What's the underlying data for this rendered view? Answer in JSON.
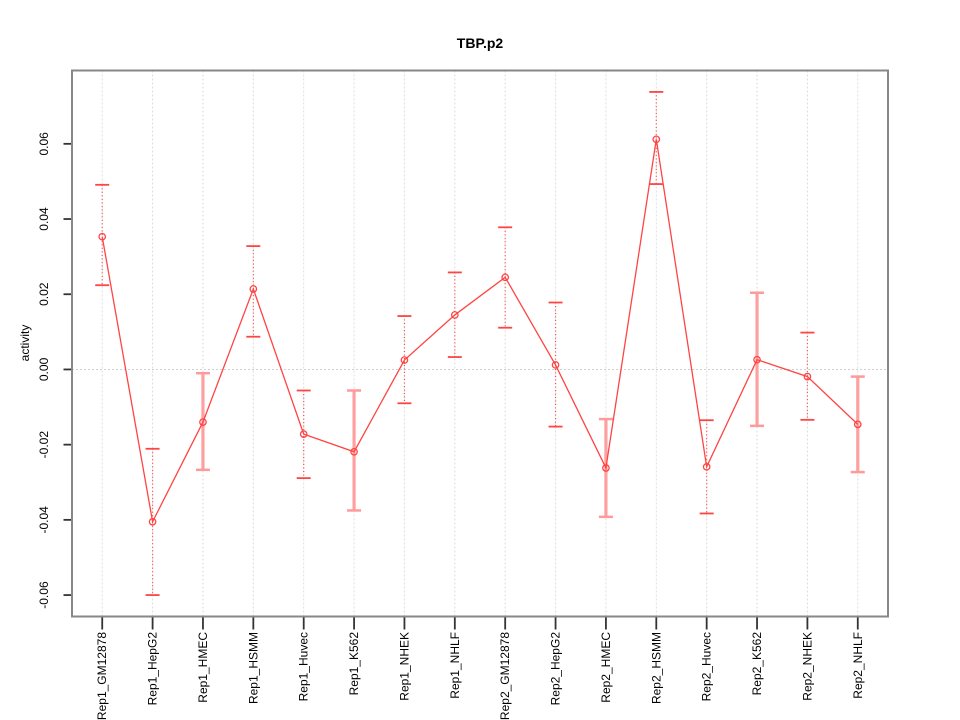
{
  "title": "TBP.p2",
  "chart_data": {
    "type": "line",
    "title": "TBP.p2",
    "xlabel": "",
    "ylabel": "activity",
    "legend": "none",
    "grid": "dotted vertical gridline per category; dotted horizontal line at y=0",
    "marker": "open-circle",
    "categories": [
      "Rep1_GM12878",
      "Rep1_HepG2",
      "Rep1_HMEC",
      "Rep1_HSMM",
      "Rep1_Huvec",
      "Rep1_K562",
      "Rep1_NHEK",
      "Rep1_NHLF",
      "Rep2_GM12878",
      "Rep2_HepG2",
      "Rep2_HMEC",
      "Rep2_HSMM",
      "Rep2_Huvec",
      "Rep2_K562",
      "Rep2_NHEK",
      "Rep2_NHLF"
    ],
    "series": [
      {
        "name": "activity",
        "values": [
          0.0353,
          -0.0405,
          -0.014,
          0.0214,
          -0.0172,
          -0.0219,
          0.0025,
          0.0145,
          0.0245,
          0.0012,
          -0.0262,
          0.0612,
          -0.0259,
          0.0026,
          -0.0019,
          -0.0146
        ],
        "lower": [
          0.0224,
          -0.06,
          -0.0267,
          0.0087,
          -0.0289,
          -0.0375,
          -0.009,
          0.0033,
          0.0111,
          -0.0152,
          -0.0392,
          0.0493,
          -0.0383,
          -0.015,
          -0.0134,
          -0.0273
        ],
        "upper": [
          0.0491,
          -0.0211,
          -0.001,
          0.0328,
          -0.0056,
          -0.0056,
          0.0142,
          0.0258,
          0.0378,
          0.0178,
          -0.0132,
          0.0738,
          -0.0135,
          0.0204,
          0.0098,
          -0.0019
        ],
        "error_bar_styles": [
          "dotted",
          "dotted",
          "solid",
          "dotted",
          "dotted",
          "solid",
          "dotted",
          "dotted",
          "dotted",
          "dotted",
          "solid",
          "dotted",
          "dotted",
          "solid",
          "dotted",
          "solid"
        ]
      }
    ],
    "ylim": [
      -0.0657,
      0.0795
    ],
    "yticks": [
      -0.06,
      -0.04,
      -0.02,
      0.0,
      0.02,
      0.04,
      0.06
    ],
    "ytick_labels": [
      "-0.06",
      "-0.04",
      "-0.02",
      "0.00",
      "0.02",
      "0.04",
      "0.06"
    ],
    "colors": {
      "line": "#ff4444",
      "error_solid": "#ffa0a0",
      "gridline": "#dcdcdc",
      "zero_line": "#d0d0d0",
      "border": "#878787",
      "tick": "#333333",
      "text": "#000000",
      "background": "#ffffff"
    }
  }
}
